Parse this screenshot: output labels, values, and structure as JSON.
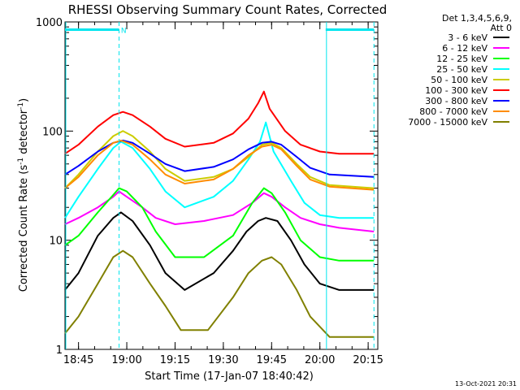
{
  "chart_data": {
    "type": "line",
    "title": "RHESSI Observing Summary Count Rates, Corrected",
    "ylabel_main": "Corrected Count Rate (s",
    "ylabel_sup1": "-1",
    "ylabel_mid": " detector",
    "ylabel_sup2": "-1",
    "ylabel_end": ")",
    "xlabel": "Start Time (17-Jan-07 18:40:42)",
    "y_scale": "log",
    "ylim": [
      1,
      1000
    ],
    "xlim": [
      18.68,
      20.3
    ],
    "x_ticks": [
      {
        "value": 18.75,
        "label": "18:45"
      },
      {
        "value": 19.0,
        "label": "19:00"
      },
      {
        "value": 19.25,
        "label": "19:15"
      },
      {
        "value": 19.5,
        "label": "19:30"
      },
      {
        "value": 19.75,
        "label": "19:45"
      },
      {
        "value": 20.0,
        "label": "20:00"
      },
      {
        "value": 20.25,
        "label": "20:15"
      }
    ],
    "y_ticks": [
      {
        "value": 1,
        "label": "1"
      },
      {
        "value": 10,
        "label": "10"
      },
      {
        "value": 100,
        "label": "100"
      },
      {
        "value": 1000,
        "label": "1000"
      }
    ],
    "legend_header": [
      "Det 1,3,4,5,6,9,",
      "Att 0"
    ],
    "legend_placement": "right",
    "series": [
      {
        "name": "3 - 6 keV",
        "color": "#000000",
        "values": [
          [
            18.68,
            3.5
          ],
          [
            18.75,
            5
          ],
          [
            18.85,
            11
          ],
          [
            18.93,
            16
          ],
          [
            18.97,
            18
          ],
          [
            19.03,
            15
          ],
          [
            19.12,
            9
          ],
          [
            19.2,
            5
          ],
          [
            19.3,
            3.5
          ],
          [
            19.45,
            5
          ],
          [
            19.55,
            8
          ],
          [
            19.62,
            12
          ],
          [
            19.68,
            15
          ],
          [
            19.72,
            16
          ],
          [
            19.78,
            15
          ],
          [
            19.85,
            10
          ],
          [
            19.92,
            6
          ],
          [
            20.0,
            4
          ],
          [
            20.1,
            3.5
          ],
          [
            20.28,
            3.5
          ]
        ]
      },
      {
        "name": "6 - 12 keV",
        "color": "#ff00ff",
        "values": [
          [
            18.68,
            14
          ],
          [
            18.75,
            16
          ],
          [
            18.85,
            20
          ],
          [
            18.93,
            25
          ],
          [
            18.96,
            28
          ],
          [
            19.0,
            25
          ],
          [
            19.08,
            20
          ],
          [
            19.15,
            16
          ],
          [
            19.25,
            14
          ],
          [
            19.4,
            15
          ],
          [
            19.55,
            17
          ],
          [
            19.65,
            22
          ],
          [
            19.71,
            27
          ],
          [
            19.75,
            25
          ],
          [
            19.82,
            20
          ],
          [
            19.9,
            16
          ],
          [
            20.0,
            14
          ],
          [
            20.1,
            13
          ],
          [
            20.28,
            12
          ]
        ]
      },
      {
        "name": "12 - 25 keV",
        "color": "#00ff00",
        "values": [
          [
            18.68,
            9
          ],
          [
            18.75,
            11
          ],
          [
            18.85,
            18
          ],
          [
            18.93,
            26
          ],
          [
            18.96,
            30
          ],
          [
            19.0,
            28
          ],
          [
            19.08,
            20
          ],
          [
            19.15,
            12
          ],
          [
            19.25,
            7
          ],
          [
            19.4,
            7
          ],
          [
            19.55,
            11
          ],
          [
            19.65,
            22
          ],
          [
            19.71,
            30
          ],
          [
            19.75,
            27
          ],
          [
            19.82,
            18
          ],
          [
            19.9,
            10
          ],
          [
            20.0,
            7
          ],
          [
            20.1,
            6.5
          ],
          [
            20.28,
            6.5
          ]
        ]
      },
      {
        "name": "25 - 50 keV",
        "color": "#00ffff",
        "values": [
          [
            18.68,
            16
          ],
          [
            18.75,
            25
          ],
          [
            18.85,
            45
          ],
          [
            18.93,
            70
          ],
          [
            18.97,
            80
          ],
          [
            19.03,
            70
          ],
          [
            19.12,
            45
          ],
          [
            19.2,
            28
          ],
          [
            19.3,
            20
          ],
          [
            19.45,
            25
          ],
          [
            19.55,
            35
          ],
          [
            19.63,
            55
          ],
          [
            19.69,
            80
          ],
          [
            19.72,
            120
          ],
          [
            19.76,
            65
          ],
          [
            19.85,
            35
          ],
          [
            19.92,
            22
          ],
          [
            20.0,
            17
          ],
          [
            20.1,
            16
          ],
          [
            20.28,
            16
          ]
        ]
      },
      {
        "name": "50 - 100 keV",
        "color": "#cccc00",
        "values": [
          [
            18.68,
            30
          ],
          [
            18.75,
            40
          ],
          [
            18.85,
            65
          ],
          [
            18.93,
            90
          ],
          [
            18.98,
            100
          ],
          [
            19.03,
            90
          ],
          [
            19.12,
            65
          ],
          [
            19.2,
            45
          ],
          [
            19.3,
            35
          ],
          [
            19.45,
            38
          ],
          [
            19.55,
            45
          ],
          [
            19.63,
            58
          ],
          [
            19.7,
            75
          ],
          [
            19.75,
            78
          ],
          [
            19.8,
            70
          ],
          [
            19.88,
            50
          ],
          [
            19.95,
            38
          ],
          [
            20.05,
            32
          ],
          [
            20.28,
            30
          ]
        ]
      },
      {
        "name": "100 - 300 keV",
        "color": "#ff0000",
        "values": [
          [
            18.68,
            62
          ],
          [
            18.75,
            75
          ],
          [
            18.85,
            110
          ],
          [
            18.93,
            140
          ],
          [
            18.98,
            150
          ],
          [
            19.03,
            140
          ],
          [
            19.12,
            110
          ],
          [
            19.2,
            85
          ],
          [
            19.3,
            72
          ],
          [
            19.45,
            78
          ],
          [
            19.55,
            95
          ],
          [
            19.63,
            130
          ],
          [
            19.68,
            180
          ],
          [
            19.71,
            230
          ],
          [
            19.74,
            160
          ],
          [
            19.82,
            100
          ],
          [
            19.9,
            75
          ],
          [
            20.0,
            65
          ],
          [
            20.1,
            62
          ],
          [
            20.28,
            62
          ]
        ]
      },
      {
        "name": "300 - 800 keV",
        "color": "#0000ff",
        "values": [
          [
            18.68,
            40
          ],
          [
            18.75,
            48
          ],
          [
            18.85,
            65
          ],
          [
            18.93,
            78
          ],
          [
            18.98,
            82
          ],
          [
            19.03,
            78
          ],
          [
            19.12,
            62
          ],
          [
            19.2,
            50
          ],
          [
            19.3,
            43
          ],
          [
            19.45,
            47
          ],
          [
            19.55,
            55
          ],
          [
            19.63,
            68
          ],
          [
            19.7,
            78
          ],
          [
            19.75,
            80
          ],
          [
            19.8,
            75
          ],
          [
            19.88,
            58
          ],
          [
            19.95,
            46
          ],
          [
            20.05,
            40
          ],
          [
            20.28,
            38
          ]
        ]
      },
      {
        "name": "800 - 7000 keV",
        "color": "#ff8c00",
        "values": [
          [
            18.68,
            30
          ],
          [
            18.75,
            38
          ],
          [
            18.85,
            60
          ],
          [
            18.93,
            78
          ],
          [
            18.97,
            82
          ],
          [
            19.03,
            75
          ],
          [
            19.12,
            55
          ],
          [
            19.2,
            40
          ],
          [
            19.3,
            33
          ],
          [
            19.45,
            36
          ],
          [
            19.55,
            45
          ],
          [
            19.63,
            60
          ],
          [
            19.7,
            72
          ],
          [
            19.75,
            75
          ],
          [
            19.8,
            68
          ],
          [
            19.88,
            48
          ],
          [
            19.95,
            36
          ],
          [
            20.05,
            31
          ],
          [
            20.28,
            29
          ]
        ]
      },
      {
        "name": "7000 - 15000 keV",
        "color": "#808000",
        "values": [
          [
            18.68,
            1.4
          ],
          [
            18.75,
            2
          ],
          [
            18.85,
            4
          ],
          [
            18.93,
            7
          ],
          [
            18.98,
            8
          ],
          [
            19.03,
            7
          ],
          [
            19.12,
            4
          ],
          [
            19.2,
            2.5
          ],
          [
            19.28,
            1.5
          ],
          [
            19.42,
            1.5
          ],
          [
            19.55,
            3
          ],
          [
            19.63,
            5
          ],
          [
            19.7,
            6.5
          ],
          [
            19.75,
            7
          ],
          [
            19.8,
            6
          ],
          [
            19.88,
            3.5
          ],
          [
            19.95,
            2
          ],
          [
            20.05,
            1.3
          ],
          [
            20.28,
            1.3
          ]
        ]
      }
    ],
    "annotations": [
      {
        "label": "N",
        "x": 18.97,
        "y": 850,
        "color": "#00e5ee"
      }
    ],
    "markers": {
      "color": "#00e5ee",
      "dashed_lines_x": [
        18.96,
        20.28
      ],
      "solid_lines_x": [
        18.68,
        20.03
      ],
      "bars": [
        {
          "x0": 18.68,
          "x1": 18.96,
          "y": 850
        },
        {
          "x0": 20.03,
          "x1": 20.28,
          "y": 850
        }
      ]
    }
  },
  "footer": {
    "timestamp": "13-Oct-2021 20:31"
  }
}
